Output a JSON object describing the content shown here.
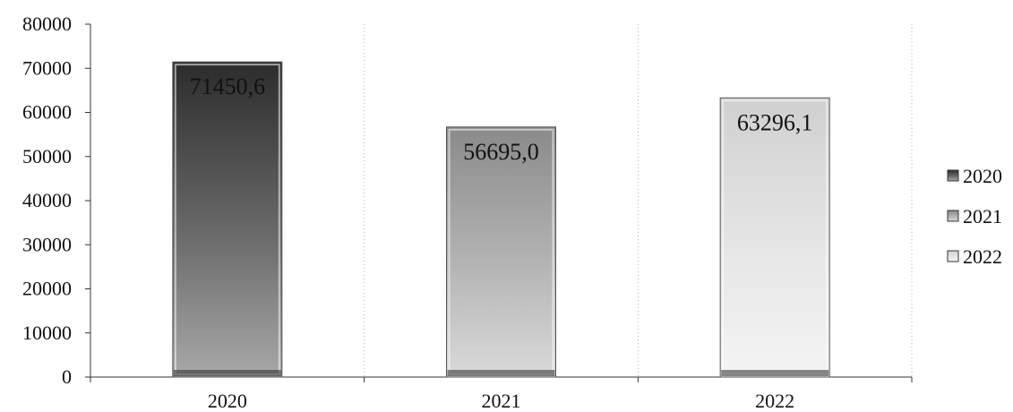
{
  "chart_data": {
    "type": "bar",
    "categories": [
      "2020",
      "2021",
      "2022"
    ],
    "values": [
      71450.6,
      56695.0,
      63296.1
    ],
    "value_labels": [
      "71450,6",
      "56695,0",
      "63296,1"
    ],
    "title": "",
    "xlabel": "",
    "ylabel": "",
    "ylim": [
      0,
      80000
    ],
    "yticks": [
      "0",
      "10000",
      "20000",
      "30000",
      "40000",
      "50000",
      "60000",
      "70000",
      "80000"
    ],
    "grid": "vertical",
    "legend": {
      "position": "right",
      "entries": [
        "2020",
        "2021",
        "2022"
      ]
    },
    "colors": {
      "2020": [
        "#2c2c2c",
        "#6a6a6a",
        "#a8a8a8"
      ],
      "2021": [
        "#8a8a8a",
        "#b4b4b4",
        "#dadada"
      ],
      "2022": [
        "#d0d0d0",
        "#e6e6e6",
        "#f4f4f4"
      ]
    }
  }
}
